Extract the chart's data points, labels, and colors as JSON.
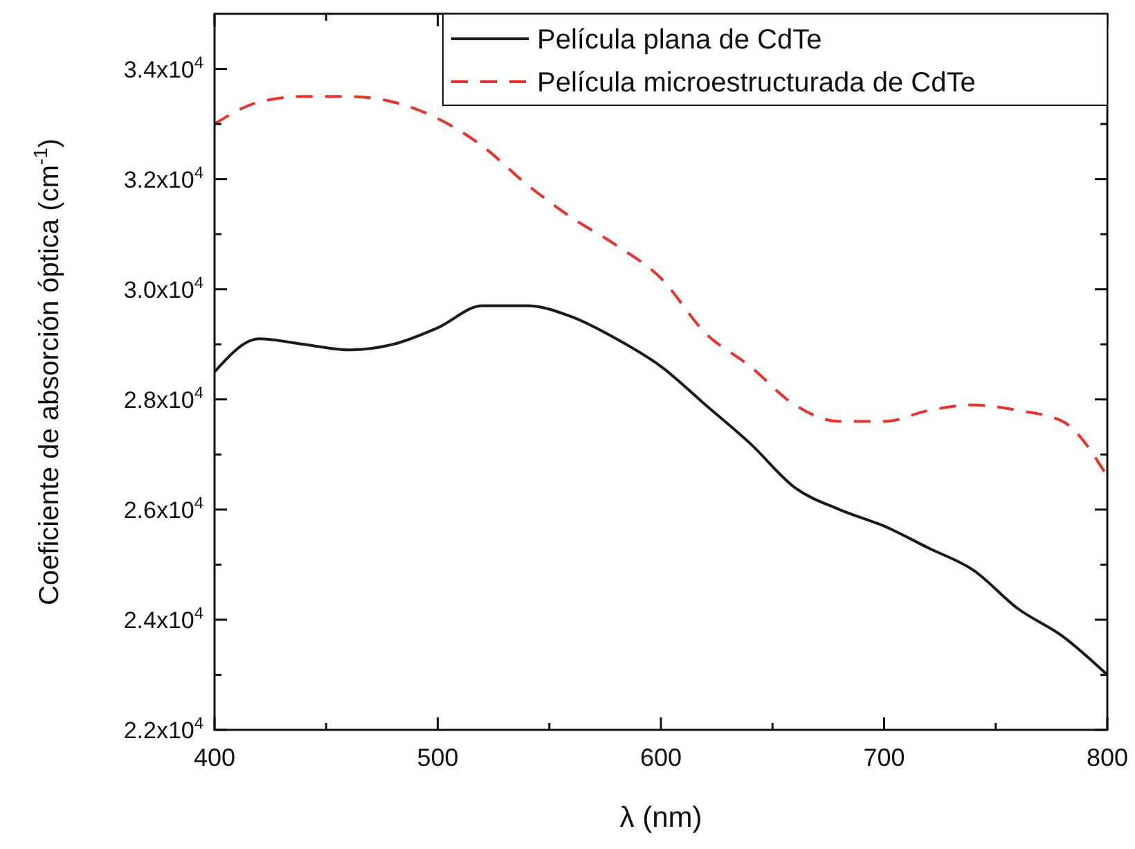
{
  "chart_data": {
    "type": "line",
    "xlabel": "λ (nm)",
    "ylabel": "Coeficiente de absorción óptica (cm$^{-1}$)",
    "xlim": [
      400,
      800
    ],
    "ylim": [
      22000,
      35000
    ],
    "xticks": [
      400,
      {
        "value": 450,
        "label": null
      },
      500,
      {
        "value": 550,
        "label": null
      },
      600,
      {
        "value": 650,
        "label": null
      },
      700,
      {
        "value": 750,
        "label": null
      },
      800
    ],
    "yticks": [
      {
        "value": 22000,
        "label": "2.2x10$^{4}$"
      },
      {
        "value": 23000,
        "label": null
      },
      {
        "value": 24000,
        "label": "2.4x10$^{4}$"
      },
      {
        "value": 25000,
        "label": null
      },
      {
        "value": 26000,
        "label": "2.6x10$^{4}$"
      },
      {
        "value": 27000,
        "label": null
      },
      {
        "value": 28000,
        "label": "2.8x10$^{4}$"
      },
      {
        "value": 29000,
        "label": null
      },
      {
        "value": 30000,
        "label": "3.0x10$^{4}$"
      },
      {
        "value": 31000,
        "label": null
      },
      {
        "value": 32000,
        "label": "3.2x10$^{4}$"
      },
      {
        "value": 33000,
        "label": null
      },
      {
        "value": 34000,
        "label": "3.4x10$^{4}$"
      }
    ],
    "x": [
      400,
      420,
      440,
      460,
      480,
      500,
      520,
      540,
      560,
      580,
      600,
      620,
      640,
      660,
      680,
      700,
      720,
      740,
      760,
      780,
      800
    ],
    "grid": false,
    "legend": "top right",
    "series": [
      {
        "name": "Película plana de CdTe",
        "color": "#1a1a1a",
        "line_style": "solid",
        "values": [
          28500,
          29100,
          29000,
          28900,
          29000,
          29300,
          29700,
          29700,
          29500,
          29100,
          28600,
          27900,
          27200,
          26400,
          26000,
          25700,
          25300,
          24900,
          24200,
          23700,
          23000
        ]
      },
      {
        "name": "Película microestructurada de CdTe",
        "color": "#e8322a",
        "line_style": "dashed",
        "values": [
          33000,
          33400,
          33500,
          33500,
          33400,
          33100,
          32600,
          31900,
          31300,
          30800,
          30200,
          29200,
          28600,
          27900,
          27600,
          27600,
          27800,
          27900,
          27800,
          27600,
          26600
        ]
      }
    ]
  }
}
